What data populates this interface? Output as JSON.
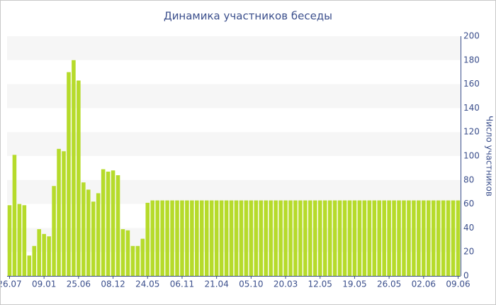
{
  "chart_data": {
    "type": "bar",
    "title": "Динамика участников беседы",
    "y_label": "Число участников",
    "categories": [
      "26.07",
      null,
      null,
      null,
      null,
      null,
      null,
      "09.01",
      null,
      null,
      null,
      null,
      null,
      null,
      "25.06",
      null,
      null,
      null,
      null,
      null,
      null,
      "08.12",
      null,
      null,
      null,
      null,
      null,
      null,
      "24.05",
      null,
      null,
      null,
      null,
      null,
      null,
      "06.11",
      null,
      null,
      null,
      null,
      null,
      null,
      "21.04",
      null,
      null,
      null,
      null,
      null,
      null,
      "05.10",
      null,
      null,
      null,
      null,
      null,
      null,
      "20.03",
      null,
      null,
      null,
      null,
      null,
      null,
      "12.05",
      null,
      null,
      null,
      null,
      null,
      null,
      "19.05",
      null,
      null,
      null,
      null,
      null,
      null,
      "26.05",
      null,
      null,
      null,
      null,
      null,
      null,
      "02.06",
      null,
      null,
      null,
      null,
      null,
      null,
      "09.06"
    ],
    "values": [
      59,
      101,
      60,
      59,
      17,
      25,
      39,
      35,
      33,
      75,
      106,
      104,
      170,
      180,
      163,
      78,
      72,
      62,
      69,
      89,
      87,
      88,
      84,
      39,
      38,
      25,
      25,
      31,
      61,
      63,
      63,
      63,
      63,
      63,
      63,
      63,
      63,
      63,
      63,
      63,
      63,
      63,
      63,
      63,
      63,
      63,
      63,
      63,
      63,
      63,
      63,
      63,
      63,
      63,
      63,
      63,
      63,
      63,
      63,
      63,
      63,
      63,
      63,
      63,
      63,
      63,
      63,
      63,
      63,
      63,
      63,
      63,
      63,
      63,
      63,
      63,
      63,
      63,
      63,
      63,
      63,
      63,
      63,
      63,
      63,
      63,
      63,
      63,
      63,
      63,
      63,
      63
    ],
    "color": "#b6db2b",
    "ylim": [
      0,
      200
    ],
    "yticks": [
      0,
      20,
      40,
      60,
      80,
      100,
      120,
      140,
      160,
      180,
      200
    ],
    "grid": "banded",
    "y_axis_side": "right"
  }
}
